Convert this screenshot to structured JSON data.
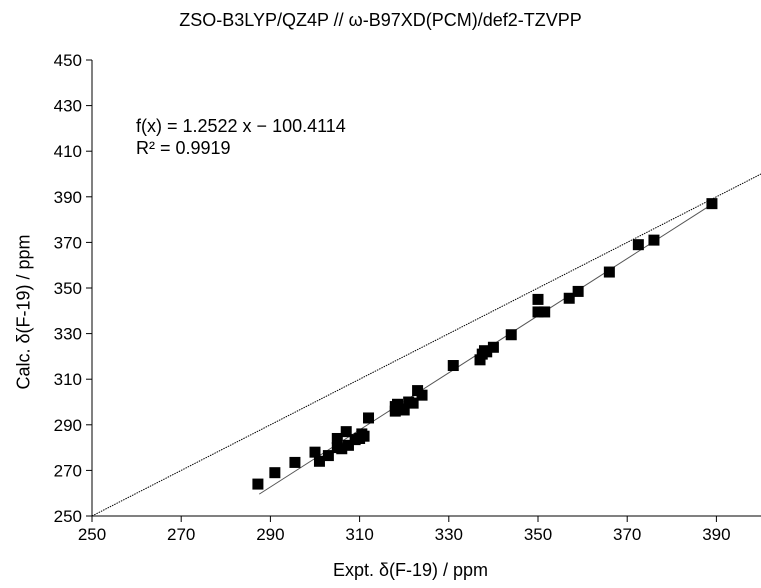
{
  "chart_data": {
    "type": "scatter",
    "title": "ZSO-B3LYP/QZ4P // ω-B97XD(PCM)/def2-TZVPP",
    "xlabel": "Expt. δ(F-19) / ppm",
    "ylabel": "Calc. δ(F-19) / ppm",
    "xlim": [
      250,
      400
    ],
    "ylim": [
      250,
      450
    ],
    "xticks": [
      250,
      270,
      290,
      310,
      330,
      350,
      370,
      390
    ],
    "yticks": [
      250,
      270,
      290,
      310,
      330,
      350,
      370,
      390,
      410,
      430,
      450
    ],
    "grid": false,
    "legend": "none",
    "annotations": {
      "equation": "f(x) = 1.2522 x − 100.4114",
      "r2": "R² = 0.9919"
    },
    "fit_line": {
      "slope": 1.2522,
      "intercept": -100.4114,
      "x_range": [
        287.5,
        389
      ]
    },
    "reference_line": {
      "slope": 1,
      "intercept": 0
    },
    "series": [
      {
        "points": [
          [
            287.2,
            264
          ],
          [
            291,
            269
          ],
          [
            295.5,
            273.5
          ],
          [
            300,
            278
          ],
          [
            301,
            274
          ],
          [
            303,
            276.5
          ],
          [
            305,
            280
          ],
          [
            305,
            284
          ],
          [
            306,
            279.5
          ],
          [
            307,
            287
          ],
          [
            307.5,
            281
          ],
          [
            309,
            283.5
          ],
          [
            310,
            284
          ],
          [
            310.5,
            286
          ],
          [
            311,
            285
          ],
          [
            312,
            293
          ],
          [
            318,
            296
          ],
          [
            318,
            298
          ],
          [
            318.5,
            299
          ],
          [
            319,
            297
          ],
          [
            320,
            296.5
          ],
          [
            321,
            300
          ],
          [
            322,
            299.5
          ],
          [
            323,
            305
          ],
          [
            324,
            303
          ],
          [
            331,
            316
          ],
          [
            337,
            318.5
          ],
          [
            337.5,
            321
          ],
          [
            338,
            322.5
          ],
          [
            338.5,
            322
          ],
          [
            340,
            324
          ],
          [
            344,
            329.5
          ],
          [
            350,
            345
          ],
          [
            350,
            339.5
          ],
          [
            351.5,
            339.5
          ],
          [
            357,
            345.5
          ],
          [
            359,
            348.5
          ],
          [
            366,
            357
          ],
          [
            372.5,
            369
          ],
          [
            376,
            371
          ],
          [
            389,
            387
          ]
        ],
        "color": "#000000"
      }
    ],
    "colors": {
      "marker": "#000000",
      "line": "#000000",
      "axis": "#000000"
    }
  }
}
